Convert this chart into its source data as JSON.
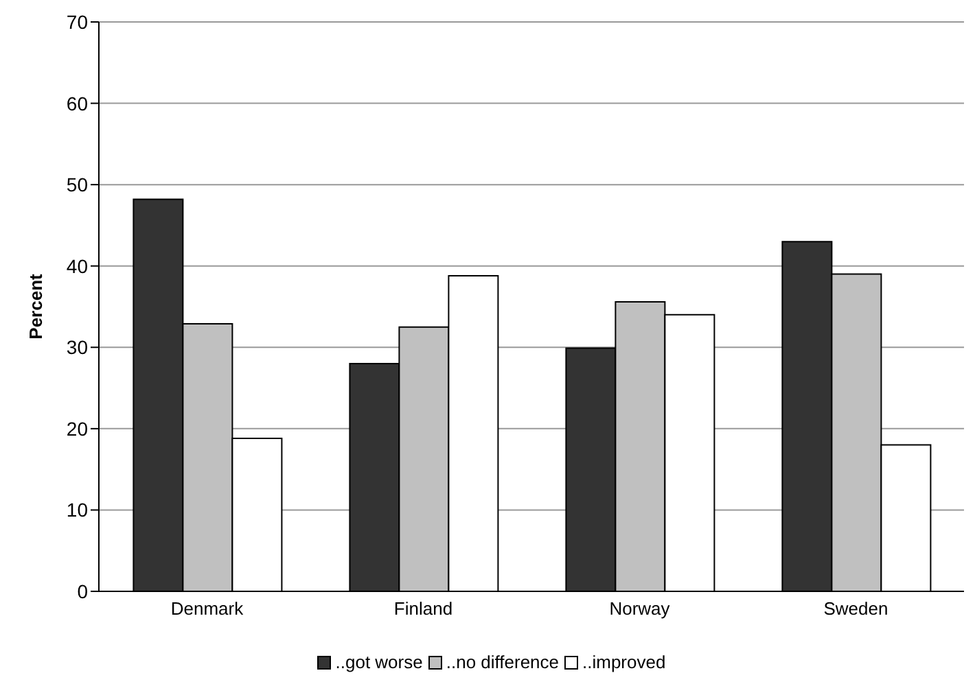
{
  "chart_data": {
    "type": "bar",
    "ylabel": "Percent",
    "categories": [
      "Denmark",
      "Finland",
      "Norway",
      "Sweden"
    ],
    "series": [
      {
        "name": "..got worse",
        "color": "#333333",
        "values": [
          48.2,
          28.0,
          29.9,
          43.0
        ]
      },
      {
        "name": "..no difference",
        "color": "#c0c0c0",
        "values": [
          32.9,
          32.5,
          35.6,
          39.0
        ]
      },
      {
        "name": "..improved",
        "color": "#ffffff",
        "values": [
          18.8,
          38.8,
          34.0,
          18.0
        ]
      }
    ],
    "ylim": [
      0,
      70
    ],
    "yticks": [
      0,
      10,
      20,
      30,
      40,
      50,
      60,
      70
    ],
    "grid": "y",
    "legend": "bottom"
  }
}
